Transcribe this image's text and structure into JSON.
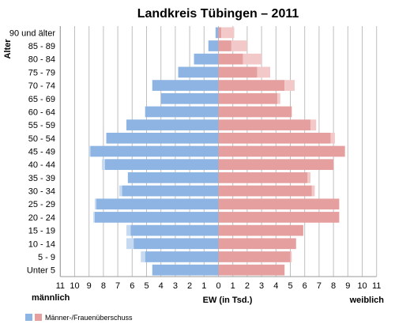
{
  "chart_data": {
    "type": "bar",
    "orientation": "horizontal-population-pyramid",
    "title": "Landkreis Tübingen – 2011",
    "ylabel": "Alter",
    "xlabel": "EW (in Tsd.)",
    "left_label": "männlich",
    "right_label": "weiblich",
    "categories": [
      "Unter 5",
      "5 - 9",
      "10 - 14",
      "15 - 19",
      "20 - 24",
      "25 - 29",
      "30 - 34",
      "35 - 39",
      "40 - 44",
      "45 - 49",
      "50 - 54",
      "55 - 59",
      "60 - 64",
      "65 - 69",
      "70 - 74",
      "75 - 79",
      "80 - 84",
      "85 - 89",
      "90 und älter"
    ],
    "series": [
      {
        "side": "male",
        "values": [
          4.6,
          5.1,
          5.9,
          6.1,
          8.6,
          8.5,
          6.7,
          6.3,
          7.9,
          8.9,
          7.8,
          6.4,
          5.1,
          4.0,
          4.6,
          2.8,
          1.7,
          0.7,
          0.2
        ]
      },
      {
        "side": "female",
        "values": [
          4.6,
          5.0,
          5.4,
          5.9,
          8.4,
          8.4,
          6.5,
          6.2,
          8.0,
          8.8,
          7.8,
          6.4,
          5.1,
          4.1,
          4.6,
          2.7,
          1.7,
          0.9,
          0.2
        ]
      },
      {
        "name": "Männer-/Frauenüberschuss",
        "side": "surplus-female",
        "values": [
          0,
          0.1,
          0,
          0,
          0,
          0,
          0.2,
          0.2,
          0,
          0,
          0.3,
          0.4,
          0,
          0.2,
          0.7,
          0.9,
          1.3,
          1.1,
          0.9
        ]
      },
      {
        "name": "Männer-/Frauenüberschuss",
        "side": "surplus-male",
        "values": [
          0,
          0.3,
          0.5,
          0.3,
          0.1,
          0.1,
          0.2,
          0,
          0.2,
          0.1,
          0,
          0,
          0,
          0,
          0,
          0,
          0,
          0,
          0
        ]
      }
    ],
    "xlim": [
      -11,
      11
    ],
    "xticks": [
      "11",
      "10",
      "9",
      "8",
      "7",
      "6",
      "5",
      "4",
      "3",
      "2",
      "1",
      "0",
      "1",
      "2",
      "3",
      "4",
      "5",
      "6",
      "7",
      "8",
      "9",
      "10",
      "11"
    ],
    "grid": true,
    "legend": {
      "label": "Männer-/Frauenüberschuss",
      "position": "bottom-left"
    },
    "colors": {
      "male": "#8db4e2",
      "male_surplus": "#c5d9f1",
      "female": "#e69f9f",
      "female_surplus": "#f2c8c8",
      "grid": "#bfbfbf"
    }
  }
}
